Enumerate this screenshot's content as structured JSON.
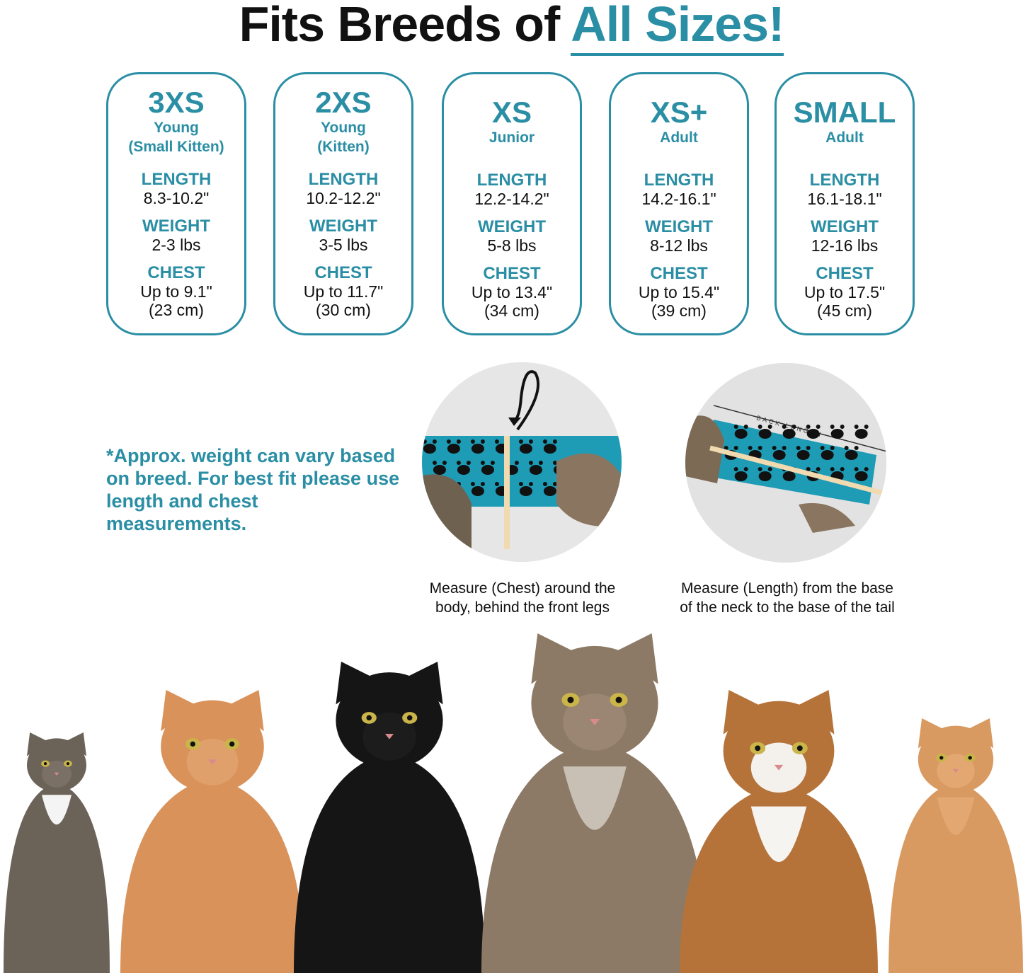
{
  "title": {
    "prefix": "Fits Breeds of ",
    "highlight": "All Sizes!"
  },
  "colors": {
    "accent": "#2a8ea4",
    "text": "#111111",
    "fabric": "#1e9bb5"
  },
  "sizes": [
    {
      "size": "3XS",
      "sub1": "Young",
      "sub2": "(Small Kitten)",
      "length": "8.3-10.2\"",
      "weight": "2-3 lbs",
      "chest": "Up to 9.1\"",
      "chest_cm": "(23 cm)"
    },
    {
      "size": "2XS",
      "sub1": "Young",
      "sub2": "(Kitten)",
      "length": "10.2-12.2\"",
      "weight": "3-5 lbs",
      "chest": "Up to 11.7\"",
      "chest_cm": "(30 cm)"
    },
    {
      "size": "XS",
      "sub1": "Junior",
      "sub2": "",
      "length": "12.2-14.2\"",
      "weight": "5-8 lbs",
      "chest": "Up to 13.4\"",
      "chest_cm": "(34 cm)"
    },
    {
      "size": "XS+",
      "sub1": "Adult",
      "sub2": "",
      "length": "14.2-16.1\"",
      "weight": "8-12 lbs",
      "chest": "Up to 15.4\"",
      "chest_cm": "(39 cm)"
    },
    {
      "size": "SMALL",
      "sub1": "Adult",
      "sub2": "",
      "length": "16.1-18.1\"",
      "weight": "12-16 lbs",
      "chest": "Up to 17.5\"",
      "chest_cm": "(45 cm)"
    }
  ],
  "labels": {
    "length": "LENGTH",
    "weight": "WEIGHT",
    "chest": "CHEST"
  },
  "note": "*Approx. weight can vary based on breed. For best fit please use length and chest measurements.",
  "photos": {
    "chest_caption_1": "Measure (Chest) around the",
    "chest_caption_2": "body, behind the front legs",
    "length_caption_1": "Measure (Length) from the base",
    "length_caption_2": "of the neck to the base of the tail",
    "back_length_label": "BACK LENGTH"
  }
}
